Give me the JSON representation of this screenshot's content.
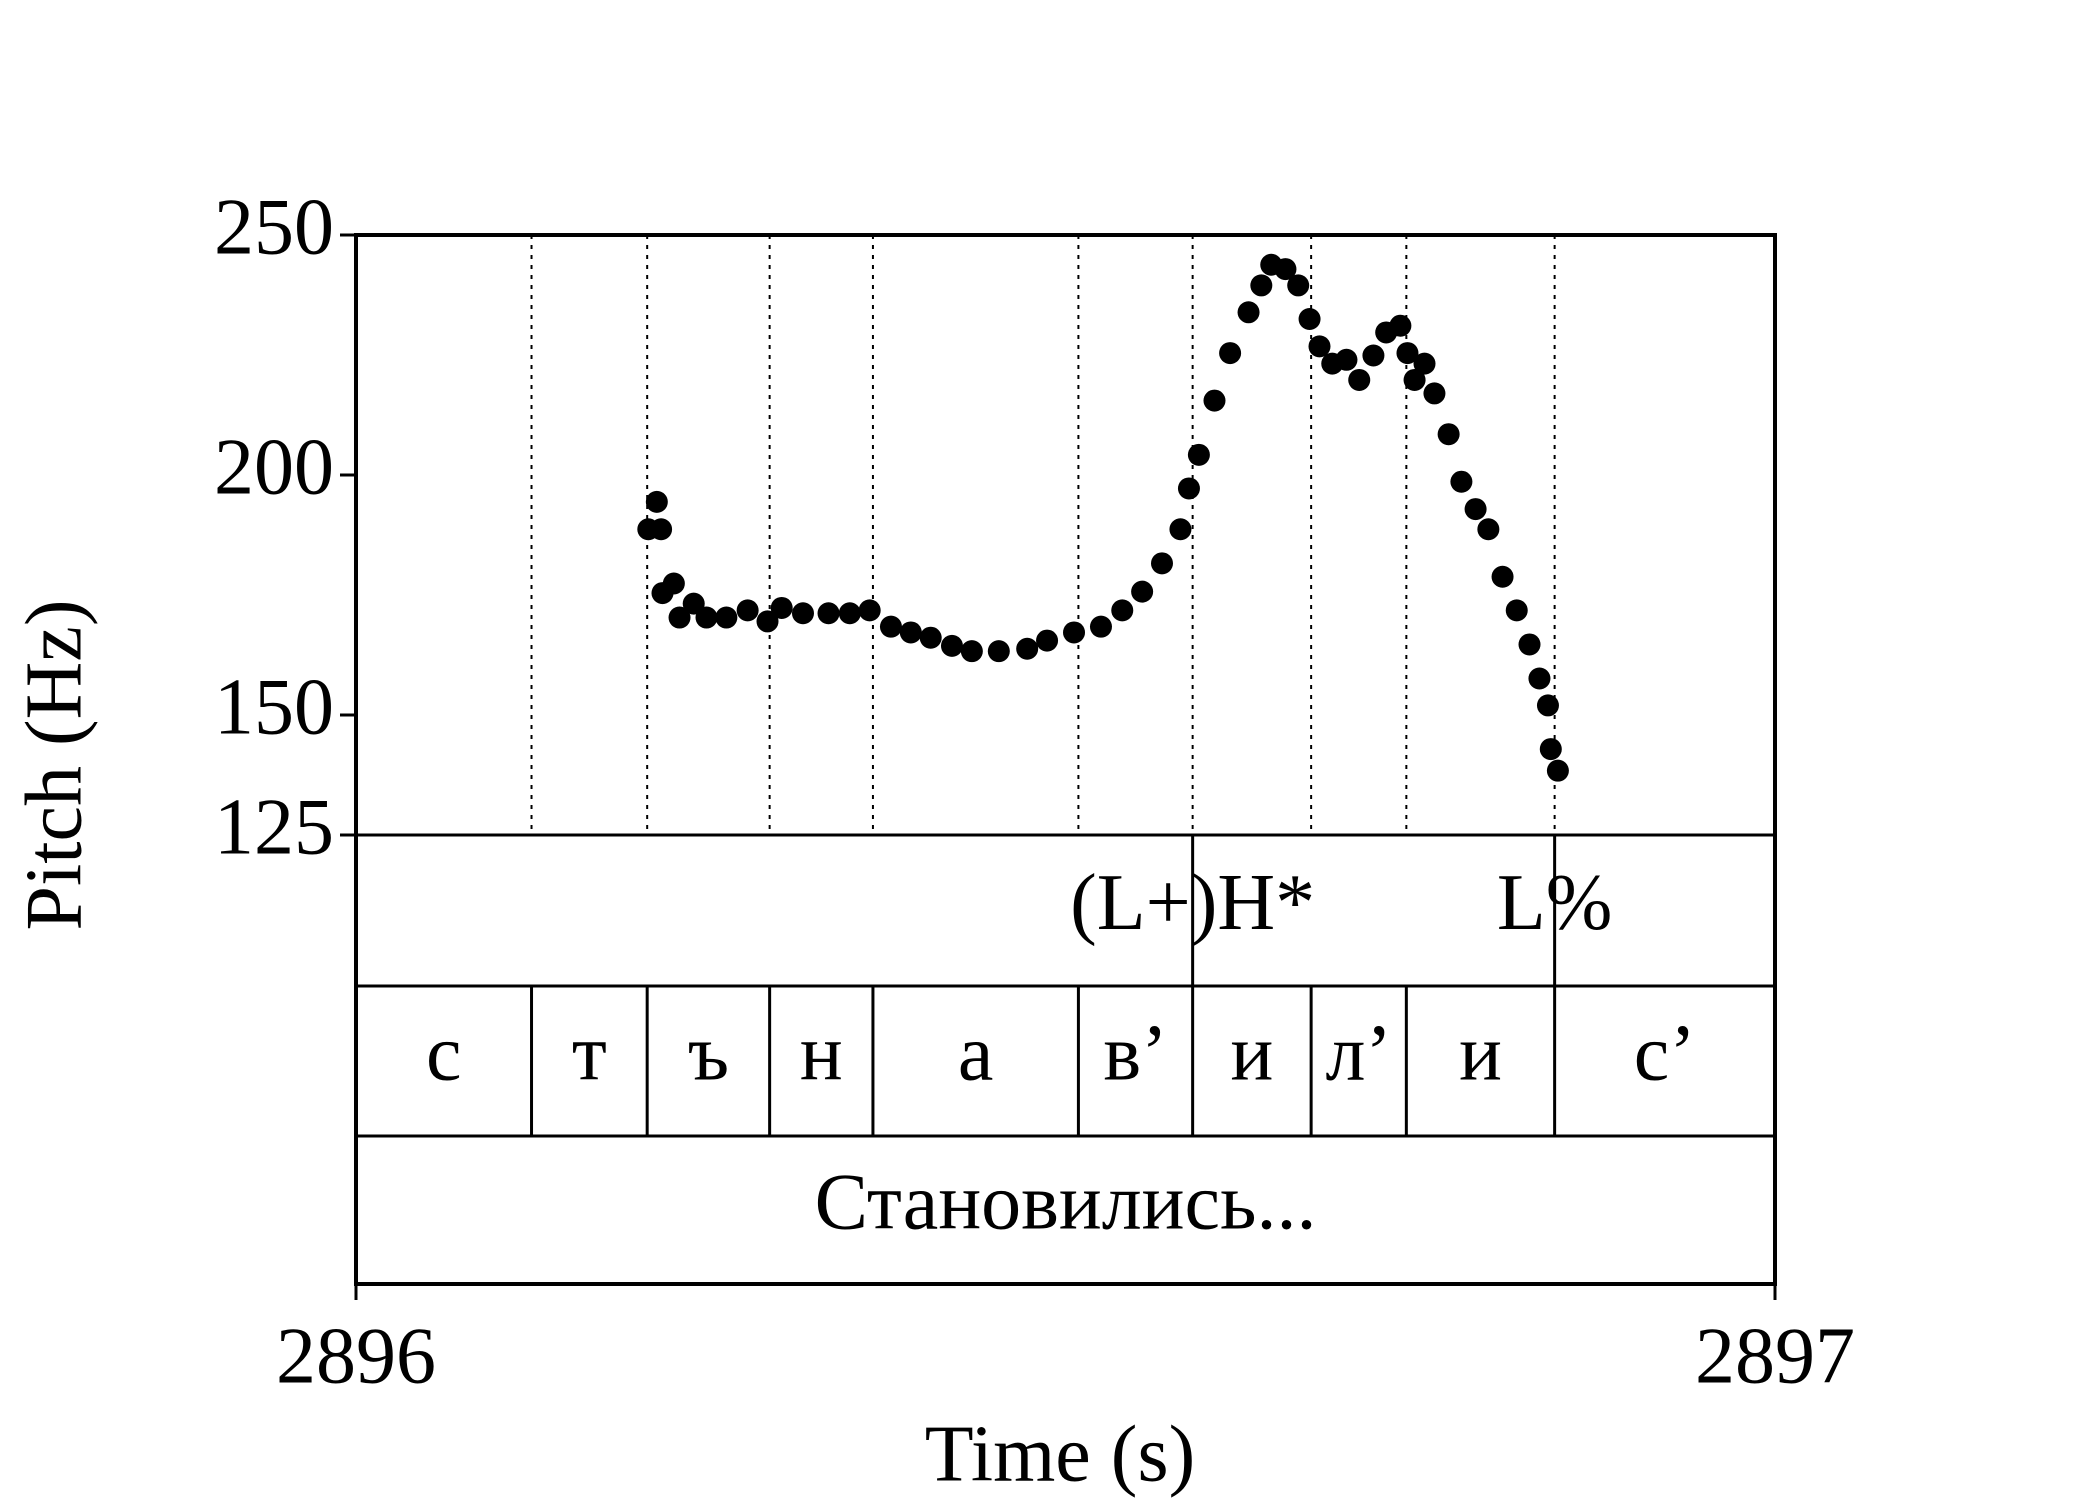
{
  "chart_data": {
    "type": "scatter",
    "xlabel": "Time (s)",
    "ylabel": "Pitch (Hz)",
    "xlim": [
      2896,
      2897
    ],
    "xticks": [
      2896,
      2897
    ],
    "ylim": [
      125,
      250
    ],
    "yticks": [
      125,
      150,
      200,
      250
    ],
    "color": "#000000",
    "x": [
      2896.206,
      2896.212,
      2896.215,
      2896.216,
      2896.224,
      2896.228,
      2896.238,
      2896.247,
      2896.261,
      2896.276,
      2896.29,
      2896.3,
      2896.315,
      2896.333,
      2896.348,
      2896.362,
      2896.377,
      2896.391,
      2896.405,
      2896.42,
      2896.434,
      2896.453,
      2896.473,
      2896.487,
      2896.506,
      2896.525,
      2896.54,
      2896.554,
      2896.568,
      2896.581,
      2896.587,
      2896.594,
      2896.605,
      2896.616,
      2896.629,
      2896.638,
      2896.645,
      2896.655,
      2896.664,
      2896.672,
      2896.679,
      2896.688,
      2896.698,
      2896.707,
      2896.717,
      2896.726,
      2896.736,
      2896.741,
      2896.746,
      2896.753,
      2896.76,
      2896.77,
      2896.779,
      2896.789,
      2896.798,
      2896.808,
      2896.818,
      2896.827,
      2896.834,
      2896.84,
      2896.842,
      2896.847
    ],
    "y": [
      188.7,
      194.4,
      188.7,
      175.4,
      177.4,
      170.3,
      173.2,
      170.3,
      170.3,
      171.8,
      169.5,
      172.3,
      171.2,
      171.2,
      171.2,
      171.8,
      168.4,
      167.2,
      166.1,
      164.4,
      163.3,
      163.3,
      163.8,
      165.5,
      167.2,
      168.4,
      171.8,
      175.7,
      181.6,
      188.7,
      197.2,
      204.2,
      215.5,
      225.4,
      233.9,
      239.5,
      243.8,
      242.9,
      239.5,
      232.5,
      226.8,
      223.2,
      224.0,
      219.8,
      224.9,
      229.7,
      231.1,
      225.4,
      219.8,
      223.2,
      217.0,
      208.5,
      198.6,
      192.9,
      188.7,
      178.8,
      171.8,
      164.7,
      157.6,
      152.0,
      142.9,
      138.4
    ],
    "tone_tier": [
      {
        "time": 2896.5896,
        "label": "(L+)H*"
      },
      {
        "time": 2896.8447,
        "label": "L%"
      }
    ],
    "segment_tier": {
      "boundaries": [
        2896.1237,
        2896.2052,
        2896.2915,
        2896.3643,
        2896.5091,
        2896.5896,
        2896.6731,
        2896.7402,
        2896.8447
      ],
      "labels": [
        "с",
        "т",
        "ъ",
        "н",
        "а",
        "в’",
        "и",
        "л’",
        "и",
        "с’"
      ]
    },
    "word_tier": {
      "labels": [
        "Становились..."
      ]
    }
  }
}
